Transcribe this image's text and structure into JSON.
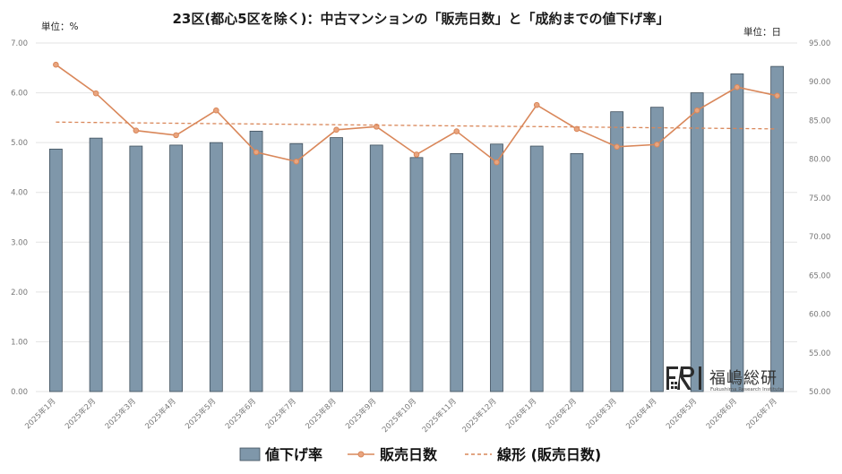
{
  "chart_data": {
    "type": "bar",
    "title": "23区(都心5区を除く)：中古マンションの「販売日数」と「成約までの値下げ率」",
    "left_unit": "単位：%",
    "right_unit": "単位：日",
    "categories": [
      "2025年1月",
      "2025年2月",
      "2025年3月",
      "2025年4月",
      "2025年5月",
      "2025年6月",
      "2025年7月",
      "2025年8月",
      "2025年9月",
      "2025年10月",
      "2025年11月",
      "2025年12月",
      "2026年1月",
      "2026年2月",
      "2026年3月",
      "2026年4月",
      "2026年5月",
      "2026年6月",
      "2026年7月"
    ],
    "left_axis": {
      "min": 0,
      "max": 7,
      "step": 1,
      "tick_labels": [
        "0.00",
        "1.00",
        "2.00",
        "3.00",
        "4.00",
        "5.00",
        "6.00",
        "7.00"
      ]
    },
    "right_axis": {
      "min": 50,
      "max": 95,
      "step": 5,
      "tick_labels": [
        "50.00",
        "55.00",
        "60.00",
        "65.00",
        "70.00",
        "75.00",
        "80.00",
        "85.00",
        "90.00",
        "95.00"
      ]
    },
    "grid": true,
    "legend_position": "bottom",
    "series": [
      {
        "name": "値下げ率",
        "type": "bar",
        "axis": "left",
        "color": "#7f97aa",
        "values": [
          4.87,
          5.09,
          4.93,
          4.95,
          5.0,
          5.23,
          4.98,
          5.1,
          4.95,
          4.7,
          4.78,
          4.97,
          4.93,
          4.78,
          5.62,
          5.71,
          6.0,
          6.38,
          6.53
        ]
      },
      {
        "name": "販売日数",
        "type": "line",
        "axis": "right",
        "color": "#d9875a",
        "values": [
          92.2,
          88.5,
          83.7,
          83.1,
          86.3,
          80.9,
          79.7,
          83.8,
          84.2,
          80.6,
          83.6,
          79.6,
          87.0,
          83.9,
          81.6,
          81.9,
          86.3,
          89.3,
          88.2
        ]
      },
      {
        "name": "線形 (販売日数)",
        "type": "trendline",
        "axis": "right",
        "color": "#d9875a",
        "style": "dashed",
        "values": [
          84.79,
          84.74,
          84.69,
          84.64,
          84.59,
          84.55,
          84.5,
          84.45,
          84.4,
          84.35,
          84.3,
          84.25,
          84.21,
          84.16,
          84.11,
          84.06,
          84.01,
          83.96,
          83.91
        ]
      }
    ]
  },
  "logo": {
    "mark": "FRI",
    "name": "福嶋総研",
    "subtitle": "Fukushima Research Institute"
  }
}
